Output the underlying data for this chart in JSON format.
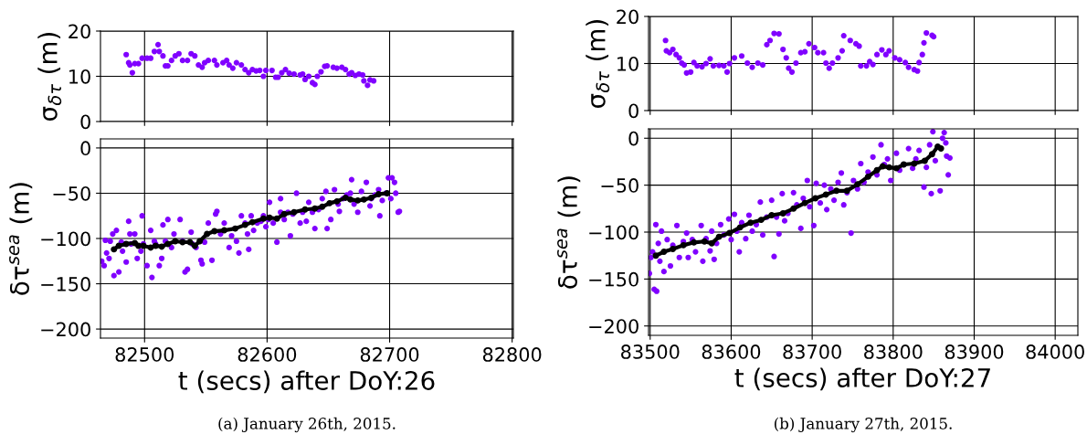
{
  "chart_data": [
    {
      "type": "scatter",
      "ylabel": "σ$_{δτ}$ (m)",
      "xlim": [
        82464,
        82801
      ],
      "xticks": [
        {
          "value": 82500,
          "label": null
        },
        {
          "value": 82600,
          "label": null
        },
        {
          "value": 82700,
          "label": null
        },
        {
          "value": 82800,
          "label": null
        }
      ],
      "ylim": [
        0,
        20
      ],
      "yticks": [
        0,
        10,
        20
      ],
      "grid": true,
      "tick_labels": "y",
      "marker": "circle",
      "series": [
        {
          "color": "#8000ff",
          "x": [
            82485,
            82487,
            82488,
            82490,
            82492,
            82495,
            82498,
            82502,
            82505,
            82508,
            82511,
            82512,
            82515,
            82517,
            82519,
            82522,
            82525,
            82528,
            82531,
            82535,
            82538,
            82541,
            82544,
            82547,
            82549,
            82552,
            82557,
            82559,
            82564,
            82567,
            82569,
            82572,
            82575,
            82579,
            82582,
            82585,
            82588,
            82591,
            82594,
            82597,
            82599,
            82604,
            82607,
            82609,
            82612,
            82615,
            82618,
            82622,
            82627,
            82629,
            82631,
            82634,
            82637,
            82639,
            82641,
            82644,
            82647,
            82649,
            82654,
            82657,
            82661,
            82664,
            82667,
            82669,
            82672,
            82675,
            82678,
            82679,
            82682,
            82684,
            82687
          ],
          "values": [
            14.8,
            13,
            12.5,
            10.8,
            12.8,
            12.8,
            14,
            14,
            14,
            15.5,
            17,
            15.5,
            14.5,
            12.3,
            12.3,
            13.5,
            14.5,
            15,
            13.5,
            13.5,
            15,
            14.5,
            12.5,
            12,
            13,
            13.5,
            13.5,
            12.5,
            13,
            13.5,
            12.5,
            11.8,
            13,
            12.5,
            11.5,
            10.8,
            11.5,
            11.2,
            11.3,
            10,
            11.3,
            11.3,
            9.8,
            9.8,
            10.8,
            11.5,
            10.7,
            10.5,
            10.3,
            10.5,
            9.3,
            10,
            8.6,
            8.2,
            10,
            11,
            12.2,
            12.3,
            12,
            11.8,
            12,
            11.5,
            10.5,
            10.8,
            10.2,
            10.5,
            10.3,
            9,
            8,
            9.2,
            9
          ]
        }
      ]
    },
    {
      "type": "scatter",
      "ylabel": "δτ$^{sea}$ (m)",
      "xlabel": "t (secs) after DoY:26",
      "xlim": [
        82464,
        82801
      ],
      "xticks": [
        82500,
        82600,
        82700,
        82800
      ],
      "ylim": [
        -210,
        10
      ],
      "yticks": [
        {
          "value": -200,
          "label": "−200"
        },
        {
          "value": -150,
          "label": "−150"
        },
        {
          "value": -100,
          "label": "−100"
        },
        {
          "value": -50,
          "label": "−50"
        },
        0
      ],
      "grid": true,
      "marker": "circle",
      "annotations": [
        "(a) January 26th, 2015."
      ],
      "series": [
        {
          "color": "#8000ff",
          "x": [
            82465,
            82467,
            82468,
            82469,
            82471,
            82472,
            82474,
            82475,
            82477,
            82479,
            82481,
            82482,
            82484,
            82485,
            82487,
            82488,
            82489,
            82492,
            82494,
            82497,
            82498,
            82499,
            82502,
            82505,
            82506,
            82508,
            82509,
            82512,
            82514,
            82515,
            82517,
            82519,
            82522,
            82524,
            82529,
            82531,
            82533,
            82535,
            82538,
            82539,
            82542,
            82546,
            82547,
            82549,
            82551,
            82552,
            82555,
            82558,
            82559,
            82562,
            82565,
            82569,
            82571,
            82574,
            82575,
            82577,
            82579,
            82582,
            82584,
            82585,
            82587,
            82589,
            82592,
            82595,
            82597,
            82599,
            82601,
            82602,
            82605,
            82608,
            82611,
            82611,
            82614,
            82617,
            82619,
            82621,
            82624,
            82627,
            82629,
            82632,
            82634,
            82637,
            82639,
            82642,
            82645,
            82648,
            82649,
            82652,
            82655,
            82658,
            82659,
            82662,
            82665,
            82668,
            82669,
            82671,
            82674,
            82677,
            82681,
            82684,
            82685,
            82688,
            82691,
            82692,
            82694,
            82697,
            82699,
            82701,
            82702,
            82704,
            82705,
            82707,
            82708
          ],
          "values": [
            -125,
            -130,
            -102,
            -116,
            -122,
            -103,
            -95,
            -141,
            -91,
            -137,
            -104,
            -114,
            -106,
            -126,
            -81,
            -95,
            -106,
            -95,
            -122,
            -114,
            -75,
            -106,
            -130,
            -91,
            -143,
            -103,
            -106,
            -130,
            -122,
            -85,
            -103,
            -79,
            -110,
            -95,
            -79,
            -103,
            -137,
            -134,
            -93,
            -106,
            -110,
            -124,
            -128,
            -104,
            null,
            -83,
            -124,
            -73,
            -70,
            -95,
            -83,
            -110,
            -97,
            -89,
            -103,
            -116,
            -75,
            -83,
            -95,
            -112,
            -75,
            -91,
            -83,
            -81,
            -75,
            -87,
            -79,
            -60,
            -83,
            -104,
            -71,
            -56,
            -79,
            -71,
            -97,
            -73,
            -50,
            -83,
            -71,
            -81,
            -60,
            -71,
            -89,
            -68,
            -56,
            -48,
            -89,
            -79,
            -46,
            -62,
            -70,
            -56,
            -52,
            -50,
            -35,
            -62,
            -71,
            -48,
            -38,
            -64,
            -56,
            -52,
            -46,
            -75,
            -58,
            -50,
            -33,
            -56,
            -33,
            -38,
            -50,
            -71,
            -70
          ]
        },
        {
          "type": "line",
          "color": "#000000",
          "x": [
            82475,
            82479,
            82485,
            82492,
            82495,
            82499,
            82505,
            82509,
            82514,
            82519,
            82525,
            82531,
            82537,
            82541,
            82545,
            82551,
            82557,
            82565,
            82574,
            82582,
            82588,
            82597,
            82602,
            82608,
            82614,
            82622,
            82631,
            82639,
            82645,
            82651,
            82657,
            82664,
            82668,
            82674,
            82679,
            82685,
            82691,
            82698
          ],
          "values": [
            -112,
            -108,
            -106,
            -105,
            -108,
            -108,
            -110,
            -108,
            -109,
            -106,
            -103,
            -104,
            -104,
            -108,
            -103,
            -95,
            -92,
            -91,
            -89,
            -85,
            -82,
            -78,
            -77,
            -78,
            -73,
            -71,
            -68,
            -67,
            -65,
            -61,
            -59,
            -55,
            -57,
            -58,
            -57,
            -55,
            -51,
            -50
          ]
        }
      ]
    },
    {
      "type": "scatter",
      "ylabel": "σ$_{δτ}$ (m)",
      "xlim": [
        83498,
        84028
      ],
      "xticks": [
        {
          "value": 83500,
          "label": null
        },
        {
          "value": 83600,
          "label": null
        },
        {
          "value": 83700,
          "label": null
        },
        {
          "value": 83800,
          "label": null
        },
        {
          "value": 83900,
          "label": null
        },
        {
          "value": 84000,
          "label": null
        }
      ],
      "ylim": [
        0,
        20
      ],
      "yticks": [
        0,
        10,
        20
      ],
      "grid": true,
      "tick_labels": "y",
      "marker": "circle",
      "series": [
        {
          "color": "#8000ff",
          "x": [
            83519,
            83520,
            83524,
            83528,
            83532,
            83536,
            83539,
            83542,
            83545,
            83550,
            83554,
            83558,
            83564,
            83569,
            83574,
            83578,
            83585,
            83591,
            83595,
            83598,
            83604,
            83613,
            83620,
            83626,
            83633,
            83639,
            83644,
            83648,
            83653,
            83659,
            83664,
            83668,
            83671,
            83675,
            83680,
            83686,
            83691,
            83696,
            83703,
            83707,
            83714,
            83717,
            83721,
            83725,
            83732,
            83737,
            83739,
            83747,
            83754,
            83758,
            83760,
            83767,
            83771,
            83775,
            83780,
            83786,
            83791,
            83795,
            83802,
            83808,
            83815,
            83819,
            83826,
            83830,
            83832,
            83836,
            83838,
            83841,
            83848,
            83850
          ],
          "values": [
            14.9,
            12.7,
            12.3,
            13,
            11.9,
            11.2,
            10.1,
            9.7,
            8,
            8.2,
            10.2,
            9.5,
            9.3,
            10,
            11,
            9.5,
            9.6,
            9.5,
            8.2,
            10,
            11.2,
            11.6,
            10.1,
            9.2,
            10.1,
            9.7,
            14,
            14.9,
            16.4,
            16.3,
            13,
            11.2,
            9,
            8.2,
            10.1,
            12.3,
            12.5,
            14.2,
            13.4,
            12.3,
            12.3,
            10.1,
            9,
            10.1,
            11.2,
            12.7,
            15.9,
            14.9,
            14.2,
            13.7,
            9.5,
            9.5,
            10.4,
            9.8,
            11.9,
            12.9,
            11.9,
            12.7,
            11.2,
            10.8,
            10.2,
            9.2,
            8.7,
            8.4,
            10.2,
            11.9,
            14.4,
            16.5,
            16,
            15.7
          ]
        }
      ]
    },
    {
      "type": "scatter",
      "ylabel": "δτ$^{sea}$ (m)",
      "xlabel": "t (secs) after DoY:27",
      "xlim": [
        83498,
        84028
      ],
      "xticks": [
        83500,
        83600,
        83700,
        83800,
        83900,
        84000
      ],
      "ylim": [
        -210,
        10
      ],
      "yticks": [
        {
          "value": -200,
          "label": "−200"
        },
        {
          "value": -150,
          "label": "−150"
        },
        {
          "value": -100,
          "label": "−100"
        },
        {
          "value": -50,
          "label": "−50"
        },
        0
      ],
      "grid": true,
      "marker": "circle",
      "annotations": [
        "(b) January 27th, 2015."
      ],
      "series": [
        {
          "color": "#8000ff",
          "x": [
            83499,
            83501,
            83503,
            83505,
            83508,
            83507,
            83510,
            83512,
            83514,
            83517,
            83521,
            83525,
            83528,
            83533,
            83536,
            83541,
            83545,
            83547,
            83552,
            83556,
            83563,
            83565,
            83569,
            83574,
            83576,
            83579,
            83582,
            83587,
            83591,
            83597,
            83600,
            83604,
            83607,
            83610,
            83613,
            83618,
            83622,
            83626,
            83631,
            83636,
            83639,
            83644,
            83650,
            83653,
            83656,
            83659,
            83663,
            83666,
            83670,
            83677,
            83681,
            83686,
            83689,
            83694,
            83697,
            83702,
            83705,
            83710,
            83715,
            83718,
            83723,
            83727,
            83732,
            83736,
            83739,
            83743,
            83748,
            83751,
            83756,
            83760,
            83764,
            83769,
            83775,
            83780,
            83785,
            83789,
            83793,
            83797,
            83804,
            83808,
            83813,
            83819,
            83824,
            83828,
            83832,
            83838,
            83841,
            83845,
            83847,
            83849,
            83852,
            83858,
            83861,
            83863,
            83865,
            83866,
            83868,
            83870
          ],
          "values": [
            -144,
            -127,
            -121,
            -161,
            -163,
            -92,
            -112,
            -131,
            -99,
            -142,
            -108,
            -136,
            -114,
            -93,
            -127,
            -110,
            -101,
            -127,
            -108,
            -121,
            -93,
            -131,
            -107,
            -120,
            -99,
            -129,
            -112,
            -92,
            -103,
            -86,
            -108,
            -81,
            -99,
            -121,
            -90,
            -107,
            -82,
            -99,
            -92,
            -68,
            -103,
            -84,
            -66,
            -126,
            -84,
            -102,
            -59,
            -88,
            -80,
            -58,
            -71,
            -96,
            -64,
            -45,
            -73,
            -93,
            -48,
            -69,
            -50,
            -76,
            -54,
            -66,
            -47,
            -37,
            -71,
            -58,
            -101,
            -45,
            -54,
            -27,
            -47,
            -36,
            -20,
            -39,
            -7,
            -28,
            -22,
            -45,
            -16,
            -34,
            -28,
            -11,
            -32,
            -22,
            -13,
            -52,
            -31,
            -7,
            -59,
            7,
            -24,
            -56,
            0,
            6,
            -5,
            -19,
            -39,
            -21
          ]
        },
        {
          "type": "line",
          "color": "#000000",
          "x": [
            83507,
            83517,
            83528,
            83541,
            83554,
            83567,
            83576,
            83585,
            83598,
            83611,
            83624,
            83637,
            83650,
            83664,
            83677,
            83691,
            83704,
            83717,
            83730,
            83743,
            83756,
            83769,
            83780,
            83787,
            83795,
            83804,
            83813,
            83826,
            83839,
            83848,
            83855,
            83859
          ],
          "values": [
            -125,
            -121,
            -118,
            -114,
            -111,
            -110,
            -112,
            -105,
            -101,
            -95,
            -90,
            -87,
            -82,
            -80,
            -75,
            -69,
            -64,
            -60,
            -56,
            -56,
            -49,
            -41,
            -34,
            -30,
            -31,
            -32,
            -28,
            -27,
            -24,
            -17,
            -9,
            -11
          ]
        }
      ]
    }
  ]
}
